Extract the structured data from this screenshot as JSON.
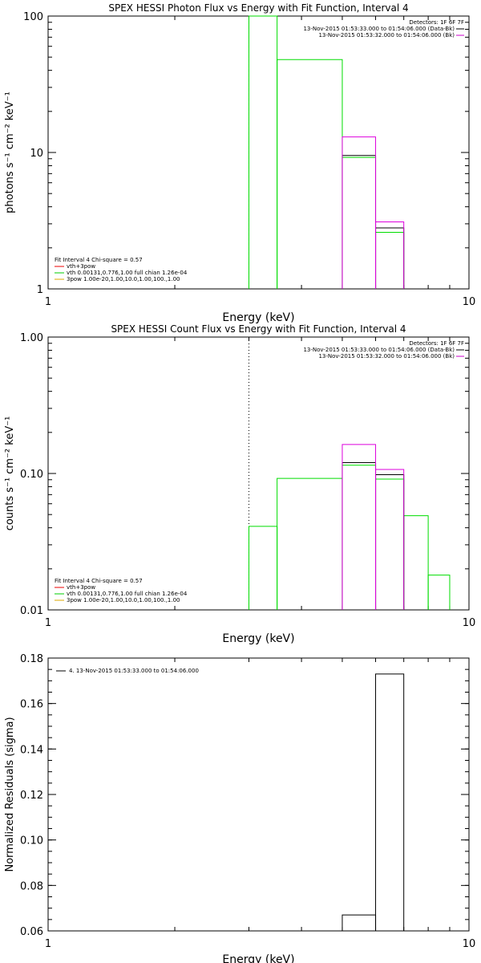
{
  "chart_data": [
    {
      "id": "photon",
      "type": "line",
      "title": "SPEX HESSI Photon Flux vs Energy with Fit Function, Interval 4",
      "xlabel": "Energy (keV)",
      "ylabel": "photons s⁻¹ cm⁻² keV⁻¹",
      "x_scale": "log",
      "y_scale": "log",
      "xlim": [
        1,
        10
      ],
      "ylim": [
        1,
        100
      ],
      "x_ticks": [
        {
          "v": 1,
          "label": "1"
        },
        {
          "v": 10,
          "label": "10"
        }
      ],
      "y_ticks": [
        {
          "v": 1,
          "label": "1"
        },
        {
          "v": 10,
          "label": "10"
        },
        {
          "v": 100,
          "label": "100"
        }
      ],
      "top_legend": {
        "header": "Detectors: 1F 6F 7F",
        "lines": [
          {
            "text": "13-Nov-2015 01:53:33.000 to 01:54:06.000 (Data-Bk)",
            "color": "#000000"
          },
          {
            "text": "13-Nov-2015 01:53:32.000 to 01:54:06.000 (Bk)",
            "color": "#cc00cc"
          }
        ]
      },
      "fit_legend": {
        "header": "Fit Interval 4   Chi-square = 0.57",
        "lines": [
          {
            "text": "vth+3pow",
            "color": "#ee0000"
          },
          {
            "text": "vth 0.00131,0.776,1.00  full chian 1.26e-04",
            "color": "#00cc00"
          },
          {
            "text": "3pow 1.00e-20,1.00,10.0,1.00,100.,1.00",
            "color": "#ddaa00"
          }
        ]
      },
      "vline": {
        "x": 3.0,
        "color": "#00aa00",
        "style": "dashed"
      },
      "series": [
        {
          "color": "#00dd00",
          "steps": [
            [
              3.0,
              3.5,
              100
            ],
            [
              3.5,
              5.0,
              48
            ],
            [
              5.0,
              6.0,
              9.2
            ],
            [
              6.0,
              7.0,
              2.6
            ]
          ]
        },
        {
          "color": "#000000",
          "steps": [
            [
              5.0,
              6.0,
              9.5
            ],
            [
              6.0,
              7.0,
              2.8
            ]
          ]
        },
        {
          "color": "#dd00dd",
          "steps": [
            [
              5.0,
              6.0,
              13
            ],
            [
              6.0,
              7.0,
              3.1
            ]
          ]
        }
      ]
    },
    {
      "id": "count",
      "type": "line",
      "title": "SPEX HESSI Count Flux vs Energy with Fit Function, Interval 4",
      "xlabel": "Energy (keV)",
      "ylabel": "counts s⁻¹ cm⁻² keV⁻¹",
      "x_scale": "log",
      "y_scale": "log",
      "xlim": [
        1,
        10
      ],
      "ylim": [
        0.01,
        1.0
      ],
      "x_ticks": [
        {
          "v": 1,
          "label": "1"
        },
        {
          "v": 10,
          "label": "10"
        }
      ],
      "y_ticks": [
        {
          "v": 0.01,
          "label": "0.01"
        },
        {
          "v": 0.1,
          "label": "0.10"
        },
        {
          "v": 1.0,
          "label": "1.00"
        }
      ],
      "top_legend": {
        "header": "Detectors: 1F 6F 7F",
        "lines": [
          {
            "text": "13-Nov-2015 01:53:33.000 to 01:54:06.000 (Data-Bk)",
            "color": "#000000"
          },
          {
            "text": "13-Nov-2015 01:53:32.000 to 01:54:06.000 (Bk)",
            "color": "#cc00cc"
          }
        ]
      },
      "fit_legend": {
        "header": "Fit Interval 4   Chi-square = 0.57",
        "lines": [
          {
            "text": "vth+3pow",
            "color": "#ee0000"
          },
          {
            "text": "vth 0.00131,0.776,1.00  full chian 1.26e-04",
            "color": "#00cc00"
          },
          {
            "text": "3pow 1.00e-20,1.00,10.0,1.00,100.,1.00",
            "color": "#ddaa00"
          }
        ]
      },
      "vline": {
        "x": 3.0,
        "color": "#000000",
        "style": "dotted"
      },
      "series": [
        {
          "color": "#00dd00",
          "steps": [
            [
              3.0,
              3.5,
              0.041
            ],
            [
              3.5,
              5.0,
              0.092
            ],
            [
              5.0,
              6.0,
              0.115
            ],
            [
              6.0,
              7.0,
              0.091
            ],
            [
              7.0,
              8.0,
              0.049
            ],
            [
              8.0,
              9.0,
              0.018
            ]
          ]
        },
        {
          "color": "#000000",
          "steps": [
            [
              5.0,
              6.0,
              0.12
            ],
            [
              6.0,
              7.0,
              0.098
            ]
          ]
        },
        {
          "color": "#dd00dd",
          "steps": [
            [
              5.0,
              6.0,
              0.163
            ],
            [
              6.0,
              7.0,
              0.107
            ]
          ]
        }
      ]
    },
    {
      "id": "residuals",
      "type": "line",
      "title": "",
      "xlabel": "Energy (keV)",
      "ylabel": "Normalized Residuals (sigma)",
      "x_scale": "log",
      "y_scale": "linear",
      "xlim": [
        1,
        10
      ],
      "ylim": [
        0.06,
        0.18
      ],
      "x_ticks": [
        {
          "v": 1,
          "label": "1"
        },
        {
          "v": 10,
          "label": "10"
        }
      ],
      "y_ticks": [
        {
          "v": 0.06,
          "label": "0.06"
        },
        {
          "v": 0.08,
          "label": "0.08"
        },
        {
          "v": 0.1,
          "label": "0.10"
        },
        {
          "v": 0.12,
          "label": "0.12"
        },
        {
          "v": 0.14,
          "label": "0.14"
        },
        {
          "v": 0.16,
          "label": "0.16"
        },
        {
          "v": 0.18,
          "label": "0.18"
        }
      ],
      "series_legend": [
        {
          "text": "4. 13-Nov-2015 01:53:33.000 to 01:54:06.000",
          "color": "#000000"
        }
      ],
      "series": [
        {
          "color": "#000000",
          "steps": [
            [
              5.0,
              6.0,
              0.067
            ],
            [
              6.0,
              7.0,
              0.173
            ]
          ]
        }
      ]
    }
  ]
}
